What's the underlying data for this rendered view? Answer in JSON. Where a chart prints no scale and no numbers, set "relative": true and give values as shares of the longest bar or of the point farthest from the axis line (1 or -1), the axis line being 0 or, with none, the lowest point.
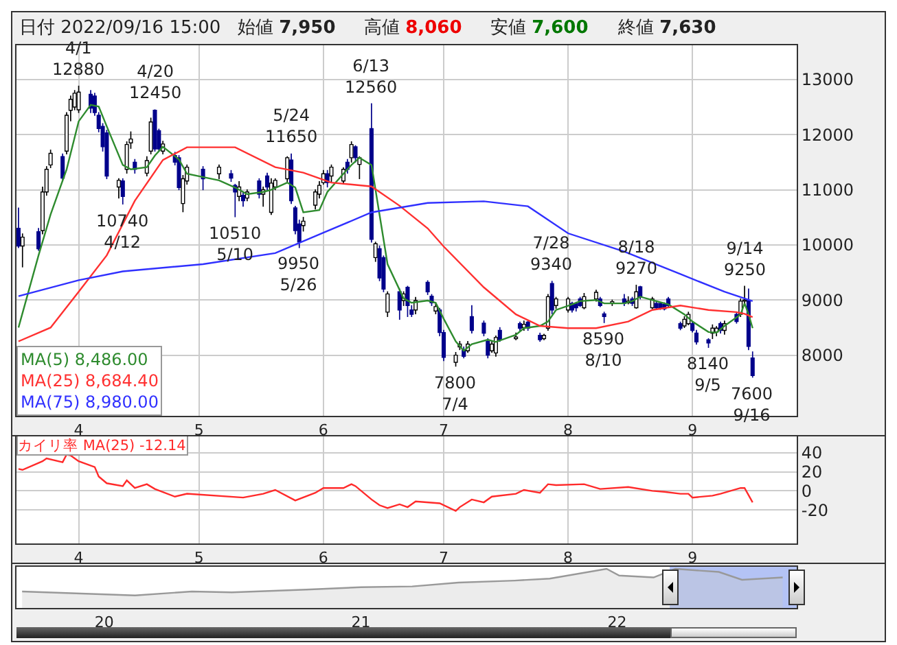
{
  "chart_data": [
    {
      "type": "candlestick",
      "grid": true,
      "x": [
        "2022-03-17",
        "2022-03-18",
        "2022-03-22",
        "2022-03-23",
        "2022-03-24",
        "2022-03-25",
        "2022-03-28",
        "2022-03-29",
        "2022-03-30",
        "2022-03-31",
        "2022-04-01",
        "2022-04-04",
        "2022-04-05",
        "2022-04-06",
        "2022-04-07",
        "2022-04-08",
        "2022-04-11",
        "2022-04-12",
        "2022-04-13",
        "2022-04-14",
        "2022-04-15",
        "2022-04-18",
        "2022-04-19",
        "2022-04-20",
        "2022-04-21",
        "2022-04-22",
        "2022-04-25",
        "2022-04-26",
        "2022-04-27",
        "2022-04-28",
        "2022-05-02",
        "2022-05-06",
        "2022-05-09",
        "2022-05-10",
        "2022-05-11",
        "2022-05-12",
        "2022-05-13",
        "2022-05-16",
        "2022-05-17",
        "2022-05-18",
        "2022-05-19",
        "2022-05-20",
        "2022-05-23",
        "2022-05-24",
        "2022-05-25",
        "2022-05-26",
        "2022-05-27",
        "2022-05-30",
        "2022-05-31",
        "2022-06-01",
        "2022-06-02",
        "2022-06-03",
        "2022-06-06",
        "2022-06-07",
        "2022-06-08",
        "2022-06-09",
        "2022-06-10",
        "2022-06-13",
        "2022-06-14",
        "2022-06-15",
        "2022-06-16",
        "2022-06-17",
        "2022-06-20",
        "2022-06-21",
        "2022-06-22",
        "2022-06-23",
        "2022-06-24",
        "2022-06-27",
        "2022-06-28",
        "2022-06-29",
        "2022-06-30",
        "2022-07-01",
        "2022-07-04",
        "2022-07-05",
        "2022-07-06",
        "2022-07-07",
        "2022-07-08",
        "2022-07-11",
        "2022-07-12",
        "2022-07-13",
        "2022-07-14",
        "2022-07-15",
        "2022-07-19",
        "2022-07-20",
        "2022-07-21",
        "2022-07-22",
        "2022-07-25",
        "2022-07-26",
        "2022-07-27",
        "2022-07-28",
        "2022-07-29",
        "2022-08-01",
        "2022-08-02",
        "2022-08-03",
        "2022-08-04",
        "2022-08-05",
        "2022-08-08",
        "2022-08-09",
        "2022-08-10",
        "2022-08-12",
        "2022-08-15",
        "2022-08-16",
        "2022-08-17",
        "2022-08-18",
        "2022-08-19",
        "2022-08-22",
        "2022-08-23",
        "2022-08-24",
        "2022-08-25",
        "2022-08-26",
        "2022-08-29",
        "2022-08-30",
        "2022-08-31",
        "2022-09-01",
        "2022-09-02",
        "2022-09-05",
        "2022-09-06",
        "2022-09-07",
        "2022-09-08",
        "2022-09-09",
        "2022-09-12",
        "2022-09-13",
        "2022-09-14",
        "2022-09-15",
        "2022-09-16"
      ],
      "ohlc": [
        [
          10300,
          10670,
          9950,
          9980
        ],
        [
          9980,
          10200,
          9600,
          10140
        ],
        [
          10240,
          10300,
          9900,
          9930
        ],
        [
          10260,
          11050,
          10200,
          10960
        ],
        [
          10960,
          11420,
          10900,
          11370
        ],
        [
          11450,
          11720,
          11400,
          11660
        ],
        [
          11600,
          11650,
          11150,
          11210
        ],
        [
          11700,
          12400,
          11650,
          12350
        ],
        [
          12440,
          12700,
          12250,
          12640
        ],
        [
          12500,
          12800,
          12450,
          12750
        ],
        [
          12450,
          12880,
          12400,
          12770
        ],
        [
          12730,
          12800,
          12400,
          12480
        ],
        [
          12700,
          12750,
          12350,
          12400
        ],
        [
          12350,
          12400,
          12050,
          12110
        ],
        [
          12150,
          12200,
          11700,
          11780
        ],
        [
          12030,
          12080,
          11200,
          11250
        ],
        [
          11050,
          11200,
          10850,
          11170
        ],
        [
          11160,
          11200,
          10740,
          10880
        ],
        [
          11370,
          11870,
          11300,
          11820
        ],
        [
          11850,
          12050,
          11750,
          11920
        ],
        [
          11500,
          11550,
          11300,
          11370
        ],
        [
          11300,
          11600,
          11250,
          11530
        ],
        [
          11700,
          12300,
          11650,
          12230
        ],
        [
          12440,
          12450,
          11700,
          11740
        ],
        [
          12070,
          12100,
          11700,
          11740
        ],
        [
          11700,
          11880,
          11650,
          11830
        ],
        [
          11620,
          11680,
          11450,
          11500
        ],
        [
          11580,
          11620,
          11000,
          11040
        ],
        [
          10750,
          11260,
          10600,
          11200
        ],
        [
          11160,
          11450,
          11100,
          11410
        ],
        [
          11370,
          11420,
          11000,
          11200
        ],
        [
          11290,
          11450,
          11200,
          11410
        ],
        [
          11290,
          11350,
          11150,
          11210
        ],
        [
          11080,
          11100,
          10510,
          10960
        ],
        [
          10880,
          11150,
          10800,
          11050
        ],
        [
          10900,
          10950,
          10700,
          10800
        ],
        [
          10850,
          11000,
          10800,
          10960
        ],
        [
          11160,
          11200,
          10850,
          10920
        ],
        [
          10920,
          11050,
          10700,
          11000
        ],
        [
          11250,
          11300,
          11000,
          11050
        ],
        [
          10590,
          11200,
          10550,
          11120
        ],
        [
          11050,
          11200,
          11000,
          11170
        ],
        [
          11200,
          11600,
          11150,
          11580
        ],
        [
          11540,
          11650,
          10750,
          10800
        ],
        [
          10670,
          10700,
          10200,
          10260
        ],
        [
          10380,
          10450,
          9950,
          10050
        ],
        [
          10350,
          10500,
          10250,
          10430
        ],
        [
          10720,
          11000,
          10650,
          10960
        ],
        [
          10920,
          11150,
          10850,
          11080
        ],
        [
          11130,
          11350,
          11100,
          11290
        ],
        [
          11290,
          11350,
          11050,
          11130
        ],
        [
          11250,
          11450,
          11150,
          11410
        ],
        [
          11160,
          11400,
          11100,
          11370
        ],
        [
          11500,
          11550,
          11300,
          11370
        ],
        [
          11580,
          11870,
          11500,
          11820
        ],
        [
          11780,
          11800,
          11500,
          11580
        ],
        [
          11460,
          11600,
          11200,
          11580
        ],
        [
          12110,
          12560,
          10050,
          10100
        ],
        [
          9770,
          10050,
          9700,
          10020
        ],
        [
          9930,
          9980,
          9350,
          9400
        ],
        [
          9770,
          9800,
          9150,
          9200
        ],
        [
          8780,
          9150,
          8700,
          9110
        ],
        [
          9150,
          9200,
          8650,
          8820
        ],
        [
          8990,
          9150,
          8900,
          9110
        ],
        [
          9230,
          9250,
          8700,
          8900
        ],
        [
          8820,
          8900,
          8700,
          8740
        ],
        [
          8820,
          9050,
          8750,
          8990
        ],
        [
          9320,
          9350,
          9100,
          9150
        ],
        [
          9070,
          9100,
          8900,
          8950
        ],
        [
          8800,
          8950,
          8750,
          8880
        ],
        [
          8820,
          8850,
          8350,
          8410
        ],
        [
          8410,
          8450,
          7900,
          7960
        ],
        [
          7870,
          8050,
          7800,
          8000
        ],
        [
          8150,
          8250,
          8100,
          8200
        ],
        [
          8100,
          8150,
          7950,
          7980
        ],
        [
          8080,
          8250,
          8050,
          8200
        ],
        [
          8700,
          8900,
          8400,
          8450
        ],
        [
          8580,
          8620,
          8350,
          8400
        ],
        [
          8250,
          8300,
          7950,
          8000
        ],
        [
          8080,
          8250,
          8050,
          8200
        ],
        [
          8040,
          8350,
          7980,
          8320
        ],
        [
          8450,
          8500,
          8250,
          8280
        ],
        [
          8300,
          8400,
          8280,
          8330
        ],
        [
          8570,
          8600,
          8450,
          8490
        ],
        [
          8500,
          8620,
          8450,
          8560
        ],
        [
          8600,
          8620,
          8450,
          8490
        ],
        [
          8360,
          8400,
          8250,
          8280
        ],
        [
          8300,
          8380,
          8280,
          8360
        ],
        [
          8490,
          9100,
          8450,
          9060
        ],
        [
          9300,
          9340,
          8750,
          8820
        ],
        [
          8900,
          9050,
          8850,
          9020
        ],
        [
          8820,
          9050,
          8780,
          9020
        ],
        [
          8940,
          8960,
          8780,
          8820
        ],
        [
          8940,
          8960,
          8800,
          8860
        ],
        [
          9020,
          9050,
          8880,
          8900
        ],
        [
          8860,
          9120,
          8840,
          9060
        ],
        [
          9020,
          9180,
          8980,
          9140
        ],
        [
          9020,
          9050,
          8880,
          8900
        ],
        [
          8750,
          8780,
          8590,
          8700
        ],
        [
          8940,
          9000,
          8900,
          8970
        ],
        [
          9020,
          9100,
          8900,
          8940
        ],
        [
          8950,
          9060,
          8930,
          8980
        ],
        [
          9020,
          9050,
          8900,
          8940
        ],
        [
          8860,
          9270,
          8850,
          9150
        ],
        [
          9240,
          9250,
          9020,
          9060
        ],
        [
          8860,
          9050,
          8840,
          9020
        ],
        [
          8940,
          8980,
          8830,
          8860
        ],
        [
          8940,
          8950,
          8830,
          8860
        ],
        [
          8920,
          8950,
          8820,
          8840
        ],
        [
          9020,
          9050,
          8880,
          8900
        ],
        [
          8570,
          8600,
          8460,
          8490
        ],
        [
          8530,
          8700,
          8500,
          8650
        ],
        [
          8570,
          8780,
          8550,
          8740
        ],
        [
          8570,
          8600,
          8420,
          8450
        ],
        [
          8400,
          8450,
          8200,
          8240
        ],
        [
          8280,
          8300,
          8140,
          8220
        ],
        [
          8400,
          8550,
          8300,
          8490
        ],
        [
          8420,
          8520,
          8350,
          8490
        ],
        [
          8570,
          8600,
          8400,
          8450
        ],
        [
          8450,
          8620,
          8380,
          8570
        ],
        [
          8740,
          8760,
          8580,
          8610
        ],
        [
          8740,
          9020,
          8700,
          8980
        ],
        [
          8980,
          9250,
          8900,
          9000
        ],
        [
          8990,
          9200,
          8100,
          8160
        ],
        [
          7950,
          8060,
          7600,
          7630
        ]
      ],
      "series": [
        {
          "type": "line",
          "name": "MA(5) 8,486.00",
          "color": "#2e8b2e",
          "x": [
            "2022-03-17",
            "2022-03-22",
            "2022-03-25",
            "2022-03-29",
            "2022-04-01",
            "2022-04-04",
            "2022-04-06",
            "2022-04-08",
            "2022-04-12",
            "2022-04-14",
            "2022-04-18",
            "2022-04-20",
            "2022-04-22",
            "2022-04-26",
            "2022-04-28",
            "2022-05-06",
            "2022-05-10",
            "2022-05-13",
            "2022-05-17",
            "2022-05-19",
            "2022-05-23",
            "2022-05-25",
            "2022-05-27",
            "2022-05-31",
            "2022-06-02",
            "2022-06-06",
            "2022-06-08",
            "2022-06-10",
            "2022-06-13",
            "2022-06-15",
            "2022-06-17",
            "2022-06-21",
            "2022-06-23",
            "2022-06-27",
            "2022-06-29",
            "2022-07-01",
            "2022-07-04",
            "2022-07-06",
            "2022-07-08",
            "2022-07-12",
            "2022-07-14",
            "2022-07-19",
            "2022-07-21",
            "2022-07-25",
            "2022-07-27",
            "2022-07-29",
            "2022-08-02",
            "2022-08-04",
            "2022-08-08",
            "2022-08-10",
            "2022-08-15",
            "2022-08-17",
            "2022-08-19",
            "2022-08-23",
            "2022-08-26",
            "2022-08-30",
            "2022-09-01",
            "2022-09-05",
            "2022-09-07",
            "2022-09-09",
            "2022-09-13",
            "2022-09-14",
            "2022-09-15",
            "2022-09-16"
          ],
          "values": [
            8500,
            9810,
            10550,
            11370,
            12240,
            12540,
            12510,
            12150,
            11450,
            11370,
            11410,
            11620,
            11780,
            11550,
            11290,
            11170,
            11040,
            10920,
            10960,
            11000,
            11130,
            11040,
            10590,
            10630,
            10960,
            11290,
            11450,
            11580,
            11450,
            10550,
            9650,
            9030,
            8950,
            8990,
            8950,
            8660,
            8250,
            8080,
            8200,
            8280,
            8240,
            8370,
            8490,
            8530,
            8610,
            8820,
            8920,
            8980,
            9000,
            8940,
            8940,
            8980,
            9060,
            8980,
            8920,
            8740,
            8610,
            8420,
            8410,
            8530,
            8740,
            8940,
            8740,
            8490
          ]
        },
        {
          "type": "line",
          "name": "MA(25) 8,684.40",
          "color": "#ff3030",
          "x": [
            "2022-03-17",
            "2022-03-25",
            "2022-04-01",
            "2022-04-08",
            "2022-04-15",
            "2022-04-22",
            "2022-04-28",
            "2022-05-10",
            "2022-05-20",
            "2022-05-27",
            "2022-06-03",
            "2022-06-13",
            "2022-06-20",
            "2022-06-27",
            "2022-07-01",
            "2022-07-11",
            "2022-07-19",
            "2022-07-25",
            "2022-08-01",
            "2022-08-08",
            "2022-08-16",
            "2022-08-22",
            "2022-08-29",
            "2022-09-05",
            "2022-09-12",
            "2022-09-14",
            "2022-09-16"
          ],
          "values": [
            8250,
            8500,
            9150,
            9810,
            10800,
            11540,
            11770,
            11770,
            11410,
            11310,
            11130,
            11060,
            10710,
            10300,
            9970,
            9230,
            8740,
            8530,
            8490,
            8490,
            8610,
            8820,
            8900,
            8820,
            8780,
            8750,
            8690
          ]
        },
        {
          "type": "line",
          "name": "MA(75) 8,980.00",
          "color": "#3030ff",
          "x": [
            "2022-03-17",
            "2022-04-01",
            "2022-04-12",
            "2022-05-02",
            "2022-05-20",
            "2022-06-01",
            "2022-06-13",
            "2022-06-27",
            "2022-07-11",
            "2022-07-22",
            "2022-08-01",
            "2022-08-15",
            "2022-08-29",
            "2022-09-09",
            "2022-09-16"
          ],
          "values": [
            9070,
            9360,
            9520,
            9650,
            9850,
            10220,
            10590,
            10760,
            10790,
            10700,
            10210,
            9880,
            9470,
            9150,
            8980
          ]
        }
      ],
      "xlim": [
        "2022-03-16T12:00",
        "2022-09-27"
      ],
      "xticks": [
        {
          "value": "2022-04-01",
          "label": "4"
        },
        {
          "value": "2022-05-01",
          "label": "5"
        },
        {
          "value": "2022-06-01",
          "label": "6"
        },
        {
          "value": "2022-07-01",
          "label": "7"
        },
        {
          "value": "2022-08-01",
          "label": "8"
        },
        {
          "value": "2022-09-01",
          "label": "9"
        }
      ],
      "ylim": [
        6900,
        13620
      ],
      "yticks": [
        8000,
        9000,
        10000,
        11000,
        12000,
        13000
      ],
      "annotations": [
        "日付 2022/09/16 15:00",
        "始値 7,950",
        "高値 8,060",
        "安値 7,600",
        "終値 7,630",
        {
          "text": "4/1\n12880",
          "x": "2022-04-01",
          "y": 12880
        },
        {
          "text": "10740\n4/12",
          "x": "2022-04-12",
          "y": 10740
        },
        {
          "text": "4/20\n12450",
          "x": "2022-04-20",
          "y": 12450
        },
        {
          "text": "10510\n5/10",
          "x": "2022-05-10",
          "y": 10510
        },
        {
          "text": "5/24\n11650",
          "x": "2022-05-24",
          "y": 11650
        },
        {
          "text": "9950\n5/26",
          "x": "2022-05-26",
          "y": 9950
        },
        {
          "text": "6/13\n12560",
          "x": "2022-06-13",
          "y": 12560
        },
        {
          "text": "7800\n7/4",
          "x": "2022-07-04",
          "y": 7800
        },
        {
          "text": "7/28\n9340",
          "x": "2022-07-28",
          "y": 9340
        },
        {
          "text": "8590\n8/10",
          "x": "2022-08-10",
          "y": 8590
        },
        {
          "text": "8/18\n9270",
          "x": "2022-08-18",
          "y": 9270
        },
        {
          "text": "8140\n9/5",
          "x": "2022-09-05",
          "y": 8140
        },
        {
          "text": "9/14\n9250",
          "x": "2022-09-14",
          "y": 9250
        },
        {
          "text": "7600\n9/16",
          "x": "2022-09-16",
          "y": 7600
        }
      ]
    },
    {
      "type": "line",
      "grid": true,
      "x": [
        "2022-03-17",
        "2022-03-18",
        "2022-03-23",
        "2022-03-24",
        "2022-03-28",
        "2022-03-29",
        "2022-03-30",
        "2022-03-31",
        "2022-04-01",
        "2022-04-05",
        "2022-04-06",
        "2022-04-08",
        "2022-04-12",
        "2022-04-13",
        "2022-04-15",
        "2022-04-18",
        "2022-04-20",
        "2022-04-25",
        "2022-04-28",
        "2022-05-12",
        "2022-05-17",
        "2022-05-20",
        "2022-05-25",
        "2022-05-30",
        "2022-06-01",
        "2022-06-06",
        "2022-06-08",
        "2022-06-09",
        "2022-06-13",
        "2022-06-15",
        "2022-06-17",
        "2022-06-20",
        "2022-06-22",
        "2022-06-24",
        "2022-06-30",
        "2022-07-04",
        "2022-07-05",
        "2022-07-08",
        "2022-07-11",
        "2022-07-13",
        "2022-07-19",
        "2022-07-21",
        "2022-07-25",
        "2022-07-27",
        "2022-07-29",
        "2022-08-05",
        "2022-08-09",
        "2022-08-16",
        "2022-08-22",
        "2022-08-25",
        "2022-08-29",
        "2022-08-31",
        "2022-09-01",
        "2022-09-06",
        "2022-09-08",
        "2022-09-13",
        "2022-09-14",
        "2022-09-16"
      ],
      "series": [
        {
          "name": "カイリ率 MA(25) -12.14",
          "color": "#ff2a2a",
          "values": [
            23,
            22,
            31,
            34,
            30,
            38,
            37,
            34,
            31,
            25,
            15,
            8,
            5,
            11,
            3,
            7,
            2,
            -6,
            -3,
            -7,
            -3,
            1,
            -10,
            -2,
            3,
            3,
            7,
            5,
            -9,
            -15,
            -18,
            -14,
            -17,
            -11,
            -13,
            -21,
            -17,
            -9,
            -12,
            -6,
            -3,
            1,
            -2,
            7,
            6,
            7,
            2,
            4,
            0,
            -1,
            -3,
            -3,
            -7,
            -5,
            -3,
            3,
            3,
            -12
          ]
        }
      ],
      "xlim": [
        "2022-03-16T12:00",
        "2022-09-27"
      ],
      "xticks": [
        {
          "value": "2022-04-01",
          "label": "4"
        },
        {
          "value": "2022-05-01",
          "label": "5"
        },
        {
          "value": "2022-06-01",
          "label": "6"
        },
        {
          "value": "2022-07-01",
          "label": "7"
        },
        {
          "value": "2022-08-01",
          "label": "8"
        },
        {
          "value": "2022-09-01",
          "label": "9"
        }
      ],
      "ylim": [
        -55,
        57
      ],
      "yticks": [
        -20,
        0,
        20,
        40
      ]
    },
    {
      "type": "area",
      "relative": true,
      "x": [
        "2019-09-06",
        "2020-02-14",
        "2020-05-05",
        "2020-07-01",
        "2020-10-15",
        "2021-01-01",
        "2021-03-15",
        "2021-05-20",
        "2021-08-08",
        "2021-09-27",
        "2021-12-17",
        "2022-01-04",
        "2022-02-22",
        "2022-03-25",
        "2022-05-26",
        "2022-06-28",
        "2022-08-25"
      ],
      "series": [
        {
          "color": "#999999",
          "values": [
            0.42,
            0.32,
            0.42,
            0.4,
            0.47,
            0.53,
            0.55,
            0.65,
            0.7,
            0.75,
            1,
            0.83,
            0.78,
            1,
            0.92,
            0.72,
            0.78
          ]
        }
      ],
      "xlim": [
        "2019-08-29",
        "2022-09-14"
      ],
      "xticks": [
        {
          "value": "2020-01-01",
          "label": "20"
        },
        {
          "value": "2021-01-01",
          "label": "21"
        },
        {
          "value": "2022-01-01",
          "label": "22"
        }
      ],
      "bands": [
        {
          "axis": "x",
          "from": "2022-03-17",
          "to": "2022-09-14",
          "color": "#b4c3f5"
        }
      ]
    }
  ]
}
